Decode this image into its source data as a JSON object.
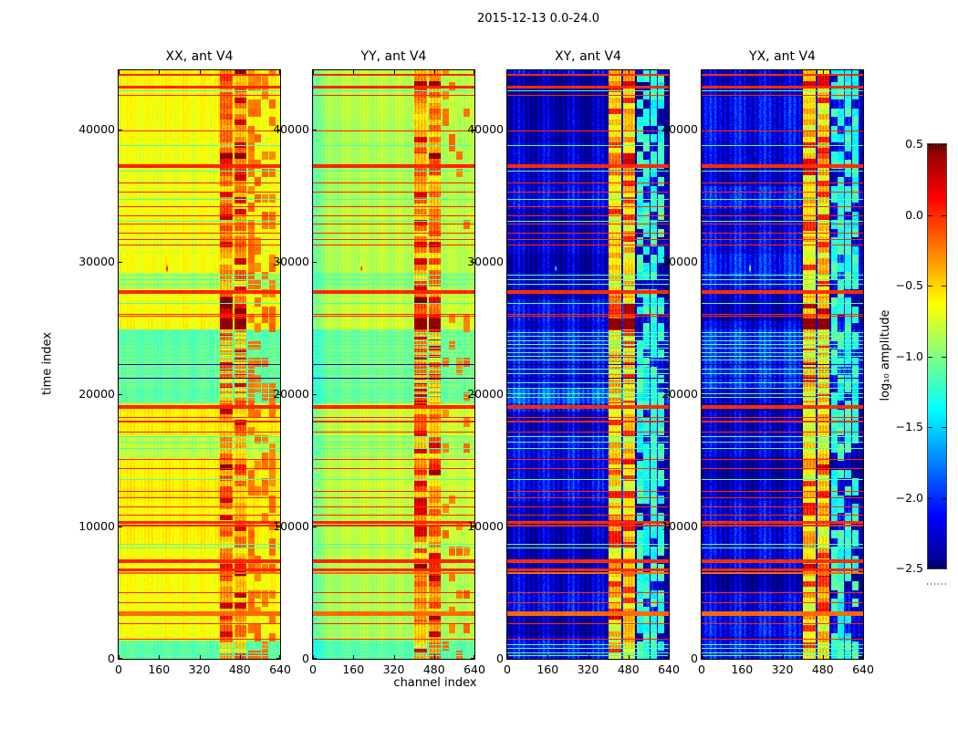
{
  "figure": {
    "background": "#ffffff"
  },
  "chart_data": {
    "type": "heatmap",
    "title": "2015-12-13 0.0-24.0",
    "xlabel": "channel index",
    "ylabel": "time index",
    "colorbar_label": "log₁₀ amplitude",
    "colormap": "jet",
    "clim": [
      -2.5,
      0.5
    ],
    "x_range": [
      0,
      640
    ],
    "y_range": [
      0,
      44480
    ],
    "x_ticks": [
      0,
      160,
      320,
      480,
      640
    ],
    "y_ticks": [
      0,
      10000,
      20000,
      30000,
      40000
    ],
    "colorbar_ticks": [
      "0.5",
      "0.0",
      "−0.5",
      "−1.0",
      "−1.5",
      "−2.0",
      "−2.5"
    ],
    "colorbar_tick_values": [
      0.5,
      0.0,
      -0.5,
      -1.0,
      -1.5,
      -2.0,
      -2.5
    ],
    "grid": false,
    "legend": "colorbar-right",
    "panels": [
      {
        "title": "XX, ant V4",
        "style": "warm",
        "base": -0.62,
        "seed": 11,
        "zone_scale": 1.0,
        "patch_prob": 0.5,
        "edge_dv": 0.1,
        "edge_w": 18
      },
      {
        "title": "YY, ant V4",
        "style": "warm",
        "base": -0.8,
        "seed": 23,
        "zone_scale": 0.55,
        "patch_prob": 0.16,
        "edge_dv": -0.28,
        "edge_w": 42
      },
      {
        "title": "XY, ant V4",
        "style": "cool",
        "base": -2.25,
        "seed": 37,
        "zone_scale": 1.0,
        "patch_prob": 0.75,
        "edge_dv": 0.0,
        "edge_w": 30
      },
      {
        "title": "YX, ant V4",
        "style": "cool",
        "base": -2.25,
        "seed": 53,
        "zone_scale": 1.0,
        "patch_prob": 0.75,
        "edge_dv": 0.0,
        "edge_w": 30
      }
    ],
    "bands": {
      "band1": [
        403,
        451
      ],
      "band2": [
        458,
        506
      ],
      "patch": [
        512,
        622
      ]
    },
    "band_base": {
      "warm": -0.28,
      "cool": -0.5
    },
    "stripe_values": {
      "warm": {
        "red": 0.02,
        "orange": -0.18,
        "cyan": -1.15,
        "blue": -2.3
      },
      "cool": {
        "red": 0.0,
        "orange": -0.18,
        "cyan": -1.1,
        "blue": -2.45
      }
    },
    "tint_zones": [
      [
        19300,
        24900,
        -0.5,
        0.18
      ],
      [
        15200,
        16900,
        -0.25,
        0.1
      ],
      [
        27900,
        29200,
        -0.22,
        0.1
      ],
      [
        0,
        1400,
        -0.45,
        0.12
      ]
    ],
    "band_hot_zones": [
      [
        25750,
        27400,
        0.3
      ],
      [
        36500,
        38300,
        0.2
      ],
      [
        13900,
        15200,
        0.2
      ],
      [
        6200,
        7600,
        0.25
      ],
      [
        2800,
        3600,
        0.2
      ],
      [
        43000,
        44480,
        0.15
      ]
    ],
    "blob": {
      "t0": 24900,
      "t1": 25750,
      "value": 0.46
    },
    "spike": {
      "t": 29500,
      "channel": 192
    },
    "stripes": [
      [
        44150,
        "red",
        2
      ],
      [
        43250,
        "red",
        3
      ],
      [
        42950,
        "cyan",
        1
      ],
      [
        42600,
        "red",
        1
      ],
      [
        39900,
        "red",
        1
      ],
      [
        38850,
        "cyan",
        1
      ],
      [
        37250,
        "red",
        4
      ],
      [
        36900,
        "cyan",
        1
      ],
      [
        36000,
        "red",
        1
      ],
      [
        35300,
        "red",
        1
      ],
      [
        34750,
        "cyan",
        1
      ],
      [
        34200,
        "red",
        1
      ],
      [
        33500,
        "red",
        1
      ],
      [
        33100,
        "cyan",
        1
      ],
      [
        32900,
        "red",
        1
      ],
      [
        32200,
        "red",
        1
      ],
      [
        31700,
        "red",
        1
      ],
      [
        31300,
        "red",
        1
      ],
      [
        29050,
        "cyan",
        1
      ],
      [
        28700,
        "cyan",
        1
      ],
      [
        28350,
        "cyan",
        1
      ],
      [
        27750,
        "red",
        4
      ],
      [
        26900,
        "cyan",
        1
      ],
      [
        26100,
        "red",
        1
      ],
      [
        25900,
        "red",
        1
      ],
      [
        24700,
        "cyan",
        1
      ],
      [
        24400,
        "cyan",
        1
      ],
      [
        24100,
        "cyan",
        1
      ],
      [
        23800,
        "cyan",
        1
      ],
      [
        23500,
        "cyan",
        1
      ],
      [
        23200,
        "cyan",
        1
      ],
      [
        22900,
        "cyan",
        1
      ],
      [
        22600,
        "cyan",
        1
      ],
      [
        22250,
        "blue",
        1
      ],
      [
        21950,
        "cyan",
        1
      ],
      [
        21600,
        "cyan",
        1
      ],
      [
        21250,
        "blue",
        1
      ],
      [
        20900,
        "cyan",
        1
      ],
      [
        20500,
        "cyan",
        1
      ],
      [
        20100,
        "cyan",
        1
      ],
      [
        19800,
        "cyan",
        1
      ],
      [
        19050,
        "red",
        4
      ],
      [
        18300,
        "red",
        1
      ],
      [
        17900,
        "red",
        2
      ],
      [
        17200,
        "red",
        1
      ],
      [
        16800,
        "cyan",
        1
      ],
      [
        16400,
        "cyan",
        1
      ],
      [
        15900,
        "cyan",
        1
      ],
      [
        15100,
        "red",
        1
      ],
      [
        14400,
        "red",
        1
      ],
      [
        13600,
        "cyan",
        1
      ],
      [
        12700,
        "red",
        1
      ],
      [
        12200,
        "red",
        1
      ],
      [
        11500,
        "red",
        1
      ],
      [
        10900,
        "red",
        1
      ],
      [
        10350,
        "red",
        3
      ],
      [
        10050,
        "red",
        2
      ],
      [
        8700,
        "cyan",
        1
      ],
      [
        8400,
        "cyan",
        1
      ],
      [
        7350,
        "red",
        4
      ],
      [
        6750,
        "red",
        3
      ],
      [
        6450,
        "orange",
        2
      ],
      [
        5000,
        "red",
        1
      ],
      [
        4300,
        "red",
        1
      ],
      [
        3450,
        "orange",
        5
      ],
      [
        2700,
        "red",
        1
      ],
      [
        1500,
        "red",
        1
      ],
      [
        1100,
        "cyan",
        1
      ],
      [
        800,
        "cyan",
        1
      ],
      [
        500,
        "cyan",
        1
      ],
      [
        250,
        "cyan",
        1
      ]
    ]
  }
}
